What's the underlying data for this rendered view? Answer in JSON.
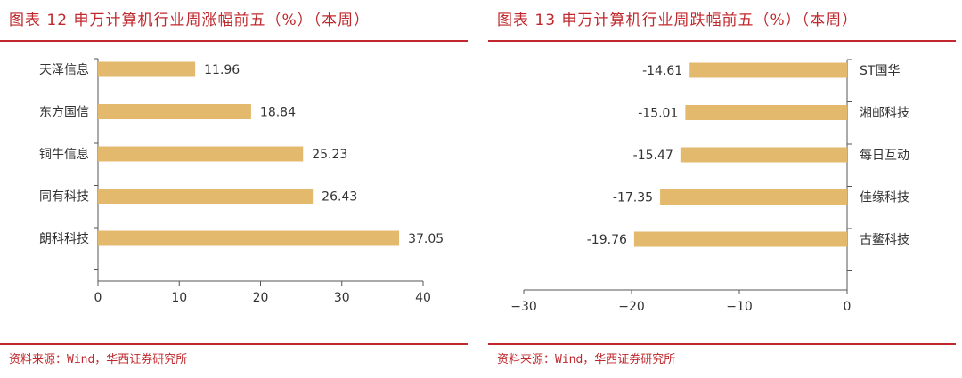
{
  "colors": {
    "accent": "#c0282d",
    "bar": "#e2b96d",
    "text": "#333333",
    "axis": "#555555"
  },
  "source": "资料来源：Wind，华西证券研究所",
  "chart_data": [
    {
      "type": "bar",
      "orientation": "horizontal",
      "title": "图表 12  申万计算机行业周涨幅前五（%）（本周）",
      "categories": [
        "天泽信息",
        "东方国信",
        "铜牛信息",
        "同有科技",
        "朗科科技"
      ],
      "values": [
        11.96,
        18.84,
        25.23,
        26.43,
        37.05
      ],
      "value_labels": [
        "11.96",
        "18.84",
        "25.23",
        "26.43",
        "37.05"
      ],
      "xlim": [
        0,
        40
      ],
      "ticks": [
        0,
        10,
        20,
        30,
        40
      ],
      "tick_labels": [
        "0",
        "10",
        "20",
        "30",
        "40"
      ],
      "category_axis_side": "left",
      "grid": false,
      "legend": "none"
    },
    {
      "type": "bar",
      "orientation": "horizontal",
      "title": "图表 13  申万计算机行业周跌幅前五（%）（本周）",
      "categories": [
        "ST国华",
        "湘邮科技",
        "每日互动",
        "佳缘科技",
        "古鳌科技"
      ],
      "values": [
        -14.61,
        -15.01,
        -15.47,
        -17.35,
        -19.76
      ],
      "value_labels": [
        "-14.61",
        "-15.01",
        "-15.47",
        "-17.35",
        "-19.76"
      ],
      "xlim": [
        -30,
        0
      ],
      "ticks": [
        -30,
        -20,
        -10,
        0
      ],
      "tick_labels": [
        "−30",
        "−20",
        "−10",
        "0"
      ],
      "category_axis_side": "right",
      "grid": false,
      "legend": "none"
    }
  ]
}
